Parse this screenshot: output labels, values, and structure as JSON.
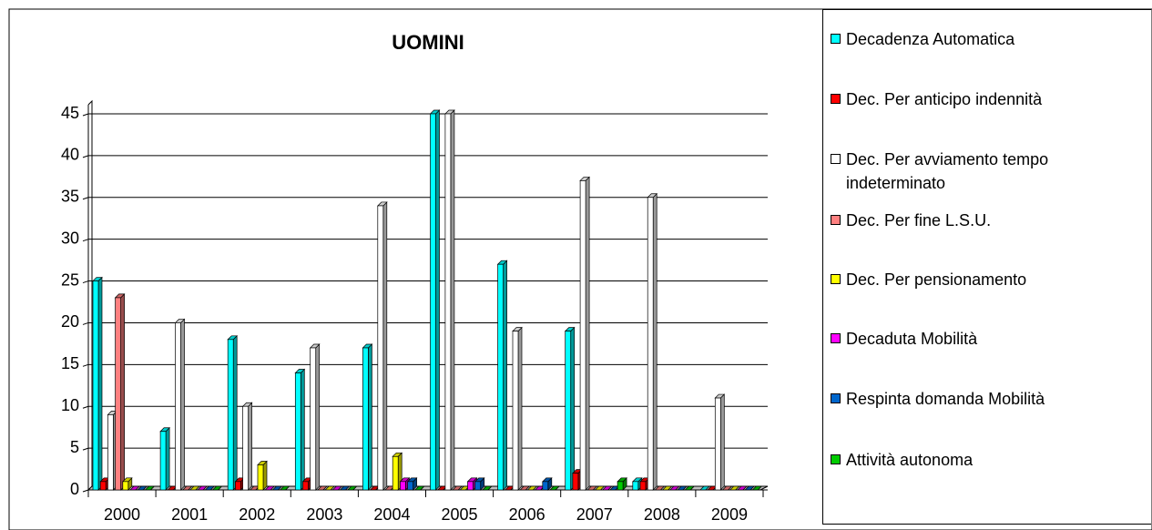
{
  "chart_data": {
    "type": "bar",
    "title": "UOMINI",
    "categories": [
      "2000",
      "2001",
      "2002",
      "2003",
      "2004",
      "2005",
      "2006",
      "2007",
      "2008",
      "2009"
    ],
    "series": [
      {
        "name": "Decadenza Automatica",
        "color": "#00ffff",
        "values": [
          25,
          7,
          18,
          14,
          17,
          45,
          27,
          19,
          1,
          0
        ]
      },
      {
        "name": "Dec. Per anticipo indennità",
        "color": "#ff0000",
        "values": [
          1,
          0,
          1,
          1,
          0,
          0,
          0,
          2,
          1,
          0
        ]
      },
      {
        "name": "Dec. Per avviamento tempo indeterminato",
        "color": "#ffffff",
        "values": [
          9,
          20,
          10,
          17,
          34,
          45,
          19,
          37,
          35,
          11
        ]
      },
      {
        "name": "Dec. Per fine L.S.U.",
        "color": "#ff8080",
        "values": [
          23,
          0,
          0,
          0,
          0,
          0,
          0,
          0,
          0,
          0
        ]
      },
      {
        "name": "Dec. Per pensionamento",
        "color": "#ffff00",
        "values": [
          1,
          0,
          3,
          0,
          4,
          0,
          0,
          0,
          0,
          0
        ]
      },
      {
        "name": "Decaduta Mobilità",
        "color": "#ff00ff",
        "values": [
          0,
          0,
          0,
          0,
          1,
          1,
          0,
          0,
          0,
          0
        ]
      },
      {
        "name": "Respinta domanda Mobilità",
        "color": "#0066cc",
        "values": [
          0,
          0,
          0,
          0,
          1,
          1,
          1,
          0,
          0,
          0
        ]
      },
      {
        "name": "Attività autonoma",
        "color": "#00cc00",
        "values": [
          0,
          0,
          0,
          0,
          0,
          0,
          0,
          1,
          0,
          0
        ]
      }
    ],
    "ylim": [
      0,
      45
    ],
    "yticks": [
      0,
      5,
      10,
      15,
      20,
      25,
      30,
      35,
      40,
      45
    ],
    "grid": true
  }
}
